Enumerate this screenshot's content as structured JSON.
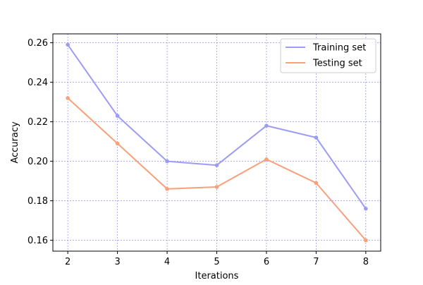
{
  "chart_data": {
    "type": "line",
    "title": "",
    "xlabel": "Iterations",
    "ylabel": "Accuracy",
    "x": [
      2,
      3,
      4,
      5,
      6,
      7,
      8
    ],
    "xlim": [
      1.7,
      8.3
    ],
    "ylim": [
      0.1545,
      0.2645
    ],
    "xticks": [
      2,
      3,
      4,
      5,
      6,
      7,
      8
    ],
    "yticks": [
      0.16,
      0.18,
      0.2,
      0.22,
      0.24,
      0.26
    ],
    "ytick_labels": [
      "0.16",
      "0.18",
      "0.20",
      "0.22",
      "0.24",
      "0.26"
    ],
    "grid": true,
    "grid_color": "#7b7bd6",
    "legend_position": "top-right",
    "series": [
      {
        "name": "Training set",
        "color": "#9c9cf5",
        "values": [
          0.259,
          0.223,
          0.2,
          0.198,
          0.218,
          0.212,
          0.176
        ]
      },
      {
        "name": "Testing set",
        "color": "#f7a07a",
        "values": [
          0.232,
          0.209,
          0.186,
          0.187,
          0.201,
          0.189,
          0.16
        ]
      }
    ]
  }
}
